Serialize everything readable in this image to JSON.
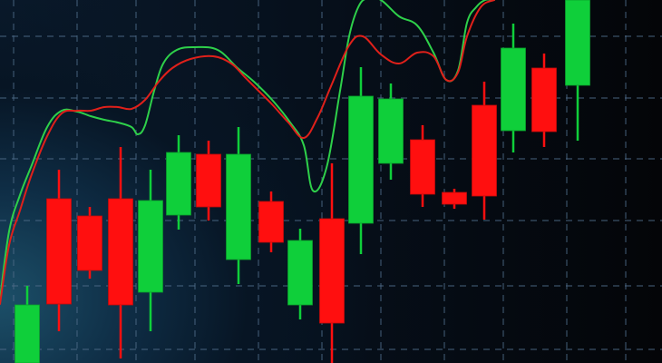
{
  "chart_data": {
    "type": "candlestick",
    "title": "",
    "xlabel": "",
    "ylabel": "",
    "ylim": [
      0,
      400
    ],
    "grid": true,
    "colors": {
      "up": "#0fcf3a",
      "down": "#ff0f0f",
      "grid": "#4d6a86",
      "ma_green": "#2ed04a",
      "ma_red": "#e0201a"
    },
    "candles": [
      {
        "x": 30,
        "open": 0,
        "close": 64,
        "high": 85,
        "low": 0
      },
      {
        "x": 65,
        "open": 181,
        "close": 65,
        "high": 213,
        "low": 35
      },
      {
        "x": 99,
        "open": 162,
        "close": 102,
        "high": 172,
        "low": 93
      },
      {
        "x": 133,
        "open": 181,
        "close": 64,
        "high": 238,
        "low": 5
      },
      {
        "x": 166,
        "open": 78,
        "close": 179,
        "high": 213,
        "low": 35
      },
      {
        "x": 197,
        "open": 163,
        "close": 232,
        "high": 251,
        "low": 147
      },
      {
        "x": 230,
        "open": 230,
        "close": 172,
        "high": 245,
        "low": 157
      },
      {
        "x": 263,
        "open": 114,
        "close": 230,
        "high": 260,
        "low": 87
      },
      {
        "x": 299,
        "open": 178,
        "close": 133,
        "high": 189,
        "low": 122
      },
      {
        "x": 331,
        "open": 64,
        "close": 135,
        "high": 148,
        "low": 48
      },
      {
        "x": 366,
        "open": 159,
        "close": 44,
        "high": 220,
        "low": 0
      },
      {
        "x": 398,
        "open": 154,
        "close": 294,
        "high": 326,
        "low": 120
      },
      {
        "x": 431,
        "open": 220,
        "close": 291,
        "high": 308,
        "low": 202
      },
      {
        "x": 466,
        "open": 246,
        "close": 186,
        "high": 262,
        "low": 172
      },
      {
        "x": 501,
        "open": 188,
        "close": 175,
        "high": 192,
        "low": 170
      },
      {
        "x": 534,
        "open": 284,
        "close": 184,
        "high": 310,
        "low": 158
      },
      {
        "x": 566,
        "open": 256,
        "close": 347,
        "high": 374,
        "low": 232
      },
      {
        "x": 600,
        "open": 325,
        "close": 255,
        "high": 341,
        "low": 238
      },
      {
        "x": 637,
        "open": 306,
        "close": 400,
        "high": 400,
        "low": 245
      }
    ],
    "moving_averages": [
      {
        "color": "ma_green",
        "x": [
          0,
          10,
          22,
          35,
          52,
          68,
          85,
          100,
          115,
          130,
          145,
          152,
          160,
          170,
          180,
          195,
          215,
          240,
          262,
          280,
          300,
          320,
          335,
          345,
          360,
          375,
          385,
          395,
          405,
          420,
          440,
          460,
          478,
          492,
          505,
          515,
          525,
          535,
          545
        ],
        "y": [
          70,
          145,
          185,
          218,
          260,
          278,
          277,
          272,
          268,
          265,
          260,
          252,
          262,
          300,
          330,
          345,
          348,
          345,
          325,
          310,
          290,
          265,
          240,
          190,
          215,
          300,
          360,
          392,
          402,
          400,
          382,
          372,
          342,
          312,
          322,
          375,
          392,
          400,
          400
        ]
      },
      {
        "color": "ma_red",
        "x": [
          0,
          10,
          22,
          35,
          52,
          68,
          85,
          100,
          115,
          130,
          145,
          160,
          175,
          190,
          210,
          235,
          255,
          270,
          285,
          300,
          318,
          335,
          350,
          365,
          385,
          400,
          420,
          440,
          460,
          478,
          492,
          505,
          515,
          530,
          545
        ],
        "y": [
          65,
          130,
          168,
          208,
          250,
          275,
          278,
          278,
          282,
          282,
          280,
          290,
          310,
          325,
          335,
          338,
          330,
          315,
          300,
          285,
          265,
          248,
          270,
          305,
          350,
          360,
          340,
          330,
          342,
          338,
          312,
          320,
          360,
          392,
          400
        ]
      }
    ]
  }
}
